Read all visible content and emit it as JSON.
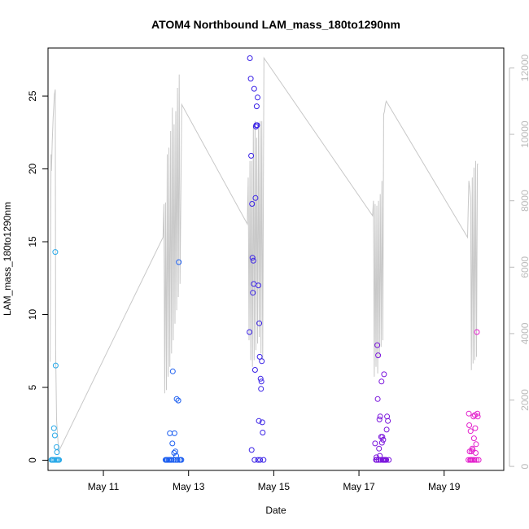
{
  "chart_data": {
    "type": "scatter",
    "title": "ATOM4 Northbound LAM_mass_180to1290nm",
    "xlabel": "Date",
    "ylabel": "LAM_mass_180to1290nm",
    "x_ticks": [
      {
        "day": 11,
        "label": "May 11"
      },
      {
        "day": 13,
        "label": "May 13"
      },
      {
        "day": 15,
        "label": "May 15"
      },
      {
        "day": 17,
        "label": "May 17"
      },
      {
        "day": 19,
        "label": "May 19"
      }
    ],
    "xlim": [
      9.7,
      20.4
    ],
    "ylim": [
      -0.7,
      28.3
    ],
    "y_ticks": [
      0,
      5,
      10,
      15,
      20,
      25
    ],
    "y2lim": [
      -120,
      12600
    ],
    "y2_ticks": [
      0,
      2000,
      4000,
      6000,
      8000,
      10000,
      12000
    ],
    "grid": false,
    "secondary_line_color": "#c8c8c8",
    "groups": [
      {
        "color": "#29a9e8",
        "points": [
          [
            9.78,
            0.02
          ],
          [
            9.8,
            0.02
          ],
          [
            9.82,
            0.02
          ],
          [
            9.84,
            2.2
          ],
          [
            9.85,
            0.02
          ],
          [
            9.86,
            1.7
          ],
          [
            9.87,
            14.3
          ],
          [
            9.88,
            6.5
          ],
          [
            9.89,
            0.02
          ],
          [
            9.9,
            0.9
          ],
          [
            9.91,
            0.55
          ],
          [
            9.92,
            0.02
          ],
          [
            9.94,
            0.02
          ],
          [
            9.96,
            0.02
          ]
        ]
      },
      {
        "color": "#1d5ff0",
        "points": [
          [
            12.46,
            0.02
          ],
          [
            12.48,
            0.02
          ],
          [
            12.5,
            0.02
          ],
          [
            12.53,
            0.02
          ],
          [
            12.55,
            0.02
          ],
          [
            12.56,
            1.85
          ],
          [
            12.58,
            0.02
          ],
          [
            12.6,
            0.02
          ],
          [
            12.62,
            1.15
          ],
          [
            12.63,
            6.1
          ],
          [
            12.65,
            0.02
          ],
          [
            12.66,
            0.5
          ],
          [
            12.67,
            1.85
          ],
          [
            12.69,
            0.6
          ],
          [
            12.7,
            0.02
          ],
          [
            12.71,
            0.3
          ],
          [
            12.72,
            4.2
          ],
          [
            12.74,
            0.02
          ],
          [
            12.76,
            4.1
          ],
          [
            12.77,
            13.6
          ],
          [
            12.79,
            0.02
          ],
          [
            12.81,
            0.02
          ],
          [
            12.83,
            0.02
          ]
        ]
      },
      {
        "color": "#3a22e6",
        "points": [
          [
            14.43,
            8.8
          ],
          [
            14.44,
            27.6
          ],
          [
            14.46,
            26.2
          ],
          [
            14.47,
            20.9
          ],
          [
            14.48,
            0.7
          ],
          [
            14.49,
            17.6
          ],
          [
            14.5,
            13.9
          ],
          [
            14.51,
            11.5
          ],
          [
            14.52,
            13.7
          ],
          [
            14.53,
            12.1
          ],
          [
            14.54,
            25.5
          ],
          [
            14.55,
            0.02
          ],
          [
            14.56,
            6.2
          ],
          [
            14.57,
            18.0
          ],
          [
            14.58,
            22.9
          ],
          [
            14.59,
            23.0
          ],
          [
            14.6,
            24.3
          ],
          [
            14.61,
            23.0
          ],
          [
            14.62,
            24.9
          ],
          [
            14.63,
            0.02
          ],
          [
            14.64,
            12.0
          ],
          [
            14.65,
            2.7
          ],
          [
            14.66,
            9.4
          ],
          [
            14.67,
            7.1
          ],
          [
            14.68,
            0.02
          ],
          [
            14.69,
            5.6
          ],
          [
            14.7,
            4.9
          ],
          [
            14.71,
            5.4
          ],
          [
            14.72,
            6.8
          ],
          [
            14.73,
            2.6
          ],
          [
            14.74,
            1.9
          ],
          [
            14.76,
            0.02
          ]
        ]
      },
      {
        "color": "#7a14dc",
        "points": [
          [
            17.38,
            1.15
          ],
          [
            17.4,
            0.02
          ],
          [
            17.41,
            0.2
          ],
          [
            17.42,
            0.02
          ],
          [
            17.43,
            7.9
          ],
          [
            17.44,
            4.2
          ],
          [
            17.45,
            7.2
          ],
          [
            17.46,
            0.02
          ],
          [
            17.47,
            0.8
          ],
          [
            17.48,
            2.8
          ],
          [
            17.49,
            0.3
          ],
          [
            17.5,
            3.0
          ],
          [
            17.51,
            0.02
          ],
          [
            17.52,
            1.6
          ],
          [
            17.53,
            5.4
          ],
          [
            17.54,
            1.2
          ],
          [
            17.55,
            1.6
          ],
          [
            17.56,
            0.02
          ],
          [
            17.57,
            1.4
          ],
          [
            17.58,
            0.02
          ],
          [
            17.59,
            5.9
          ],
          [
            17.6,
            0.02
          ],
          [
            17.62,
            0.02
          ],
          [
            17.64,
            0.02
          ],
          [
            17.65,
            2.1
          ],
          [
            17.66,
            3.0
          ],
          [
            17.68,
            2.7
          ],
          [
            17.7,
            0.02
          ]
        ]
      },
      {
        "color": "#e320cc",
        "points": [
          [
            19.57,
            0.02
          ],
          [
            19.58,
            3.2
          ],
          [
            19.59,
            2.4
          ],
          [
            19.6,
            0.6
          ],
          [
            19.61,
            0.02
          ],
          [
            19.62,
            2.0
          ],
          [
            19.63,
            0.02
          ],
          [
            19.64,
            0.6
          ],
          [
            19.65,
            0.02
          ],
          [
            19.66,
            0.8
          ],
          [
            19.67,
            0.7
          ],
          [
            19.68,
            0.02
          ],
          [
            19.69,
            3.0
          ],
          [
            19.7,
            1.5
          ],
          [
            19.71,
            0.02
          ],
          [
            19.72,
            3.1
          ],
          [
            19.73,
            2.2
          ],
          [
            19.74,
            0.5
          ],
          [
            19.75,
            1.1
          ],
          [
            19.76,
            0.02
          ],
          [
            19.77,
            8.8
          ],
          [
            19.78,
            3.2
          ],
          [
            19.79,
            3.0
          ],
          [
            19.81,
            0.02
          ]
        ]
      }
    ],
    "secondary_series": [
      [
        9.75,
        3150
      ],
      [
        9.77,
        9400
      ],
      [
        9.78,
        8900
      ],
      [
        9.8,
        9800
      ],
      [
        9.82,
        10500
      ],
      [
        9.85,
        11200
      ],
      [
        9.87,
        11350
      ],
      [
        9.88,
        3500
      ],
      [
        9.9,
        1400
      ],
      [
        9.95,
        450
      ],
      [
        12.4,
        6900
      ],
      [
        12.42,
        7900
      ],
      [
        12.44,
        2200
      ],
      [
        12.46,
        7950
      ],
      [
        12.48,
        2300
      ],
      [
        12.5,
        9400
      ],
      [
        12.52,
        2700
      ],
      [
        12.54,
        9600
      ],
      [
        12.56,
        3000
      ],
      [
        12.58,
        10100
      ],
      [
        12.6,
        3400
      ],
      [
        12.62,
        10800
      ],
      [
        12.64,
        3800
      ],
      [
        12.66,
        10300
      ],
      [
        12.68,
        4300
      ],
      [
        12.7,
        10700
      ],
      [
        12.72,
        4700
      ],
      [
        12.74,
        11400
      ],
      [
        12.76,
        5100
      ],
      [
        12.78,
        11800
      ],
      [
        12.8,
        5500
      ],
      [
        12.84,
        10900
      ],
      [
        14.38,
        7300
      ],
      [
        14.4,
        8700
      ],
      [
        14.42,
        3800
      ],
      [
        14.44,
        9200
      ],
      [
        14.46,
        3200
      ],
      [
        14.48,
        9200
      ],
      [
        14.5,
        3000
      ],
      [
        14.52,
        10300
      ],
      [
        14.54,
        3200
      ],
      [
        14.56,
        10400
      ],
      [
        14.58,
        3500
      ],
      [
        14.6,
        9900
      ],
      [
        14.62,
        3700
      ],
      [
        14.64,
        10200
      ],
      [
        14.66,
        3900
      ],
      [
        14.68,
        10400
      ],
      [
        14.7,
        3400
      ],
      [
        14.72,
        10400
      ],
      [
        14.74,
        3200
      ],
      [
        14.77,
        12300
      ],
      [
        17.32,
        7550
      ],
      [
        17.34,
        8000
      ],
      [
        17.36,
        2700
      ],
      [
        17.38,
        7900
      ],
      [
        17.4,
        3000
      ],
      [
        17.42,
        7850
      ],
      [
        17.44,
        2800
      ],
      [
        17.46,
        8000
      ],
      [
        17.48,
        3300
      ],
      [
        17.5,
        8200
      ],
      [
        17.52,
        3600
      ],
      [
        17.54,
        8600
      ],
      [
        17.56,
        3800
      ],
      [
        17.58,
        10600
      ],
      [
        17.6,
        10700
      ],
      [
        17.62,
        10900
      ],
      [
        17.64,
        11000
      ],
      [
        19.55,
        6900
      ],
      [
        19.58,
        8600
      ],
      [
        19.6,
        8400
      ],
      [
        19.62,
        8100
      ],
      [
        19.64,
        2900
      ],
      [
        19.66,
        8700
      ],
      [
        19.68,
        3100
      ],
      [
        19.7,
        9000
      ],
      [
        19.72,
        3200
      ],
      [
        19.74,
        9200
      ],
      [
        19.76,
        3300
      ],
      [
        19.78,
        9100
      ],
      [
        19.8,
        9100
      ]
    ]
  }
}
